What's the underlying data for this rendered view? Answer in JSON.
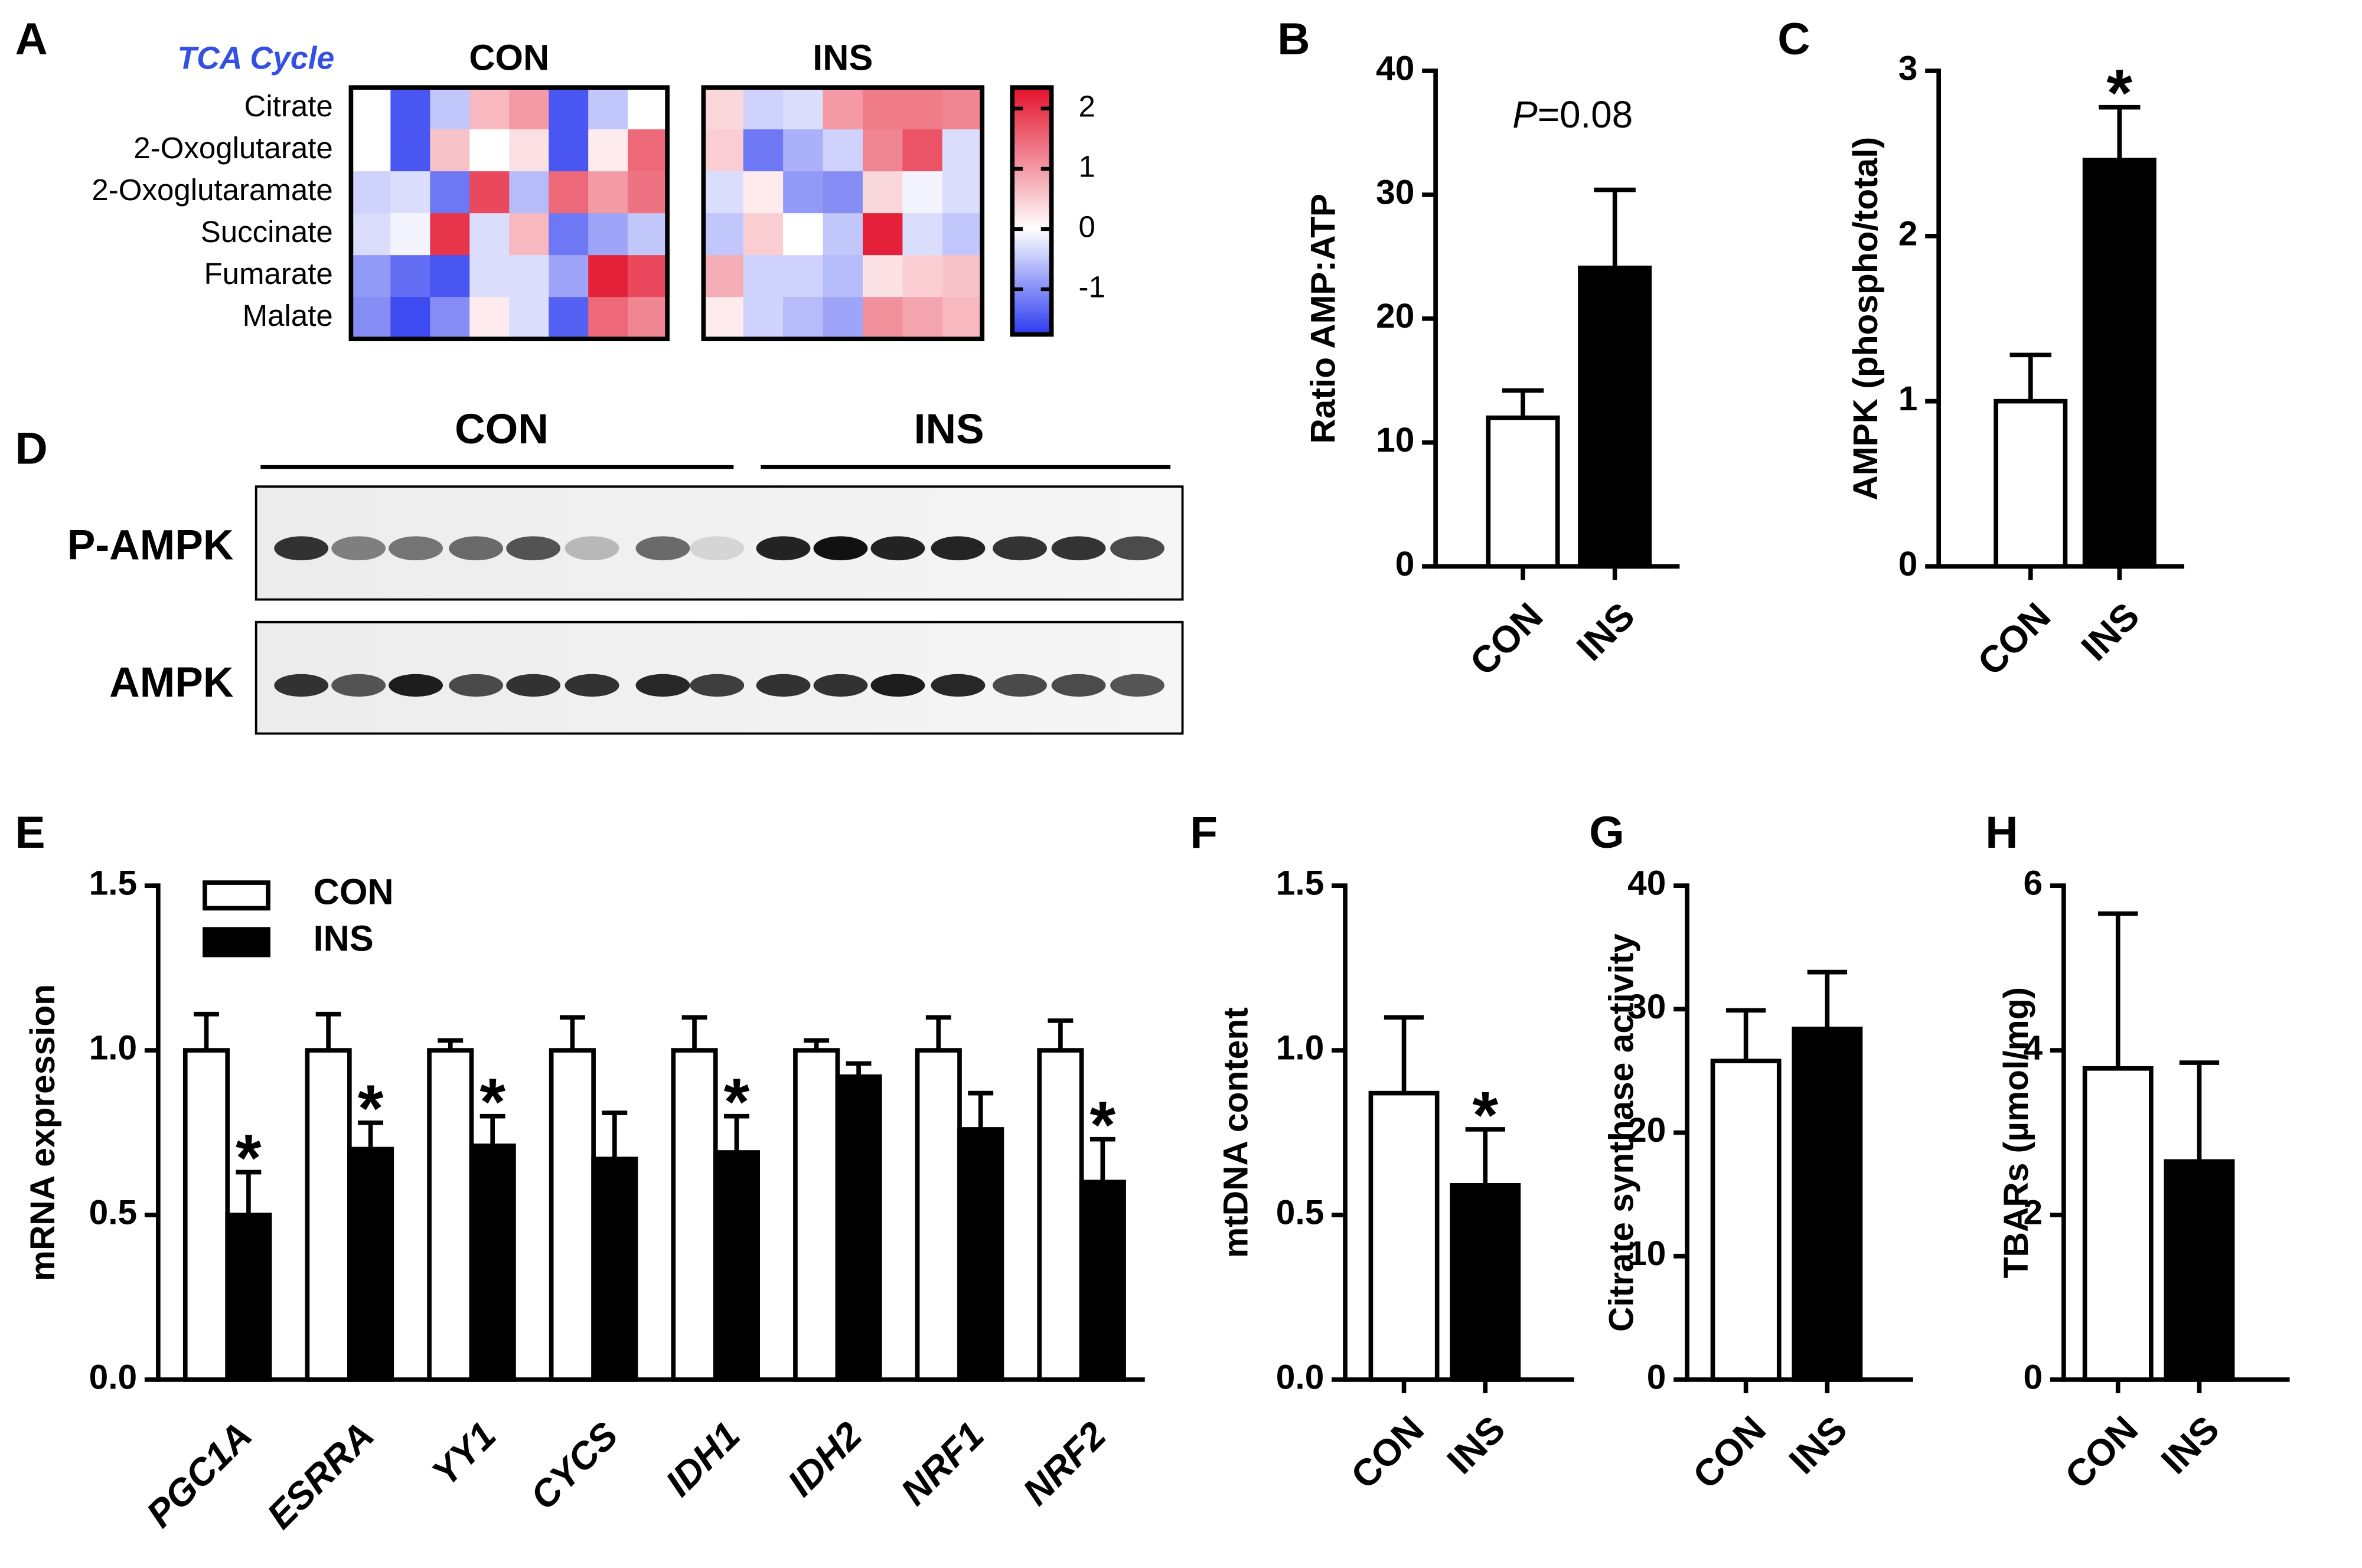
{
  "chart_data": [
    {
      "type": "heatmap",
      "panel": "A",
      "title": "TCA Cycle",
      "rows": [
        "Citrate",
        "2-Oxoglutarate",
        "2-Oxoglutaramate",
        "Succinate",
        "Fumarate",
        "Malate"
      ],
      "groups": [
        {
          "name": "CON",
          "values": [
            [
              0,
              -1.5,
              -0.5,
              0.7,
              1.0,
              -1.5,
              -0.5,
              0
            ],
            [
              0,
              -1.5,
              0.6,
              0,
              0.3,
              -1.5,
              0.2,
              1.5
            ],
            [
              -0.4,
              -0.3,
              -1.2,
              1.8,
              -0.6,
              1.5,
              1.0,
              1.4
            ],
            [
              -0.3,
              -0.1,
              2.0,
              -0.3,
              0.7,
              -1.2,
              -0.8,
              -0.5
            ],
            [
              -0.9,
              -1.3,
              -1.5,
              -0.3,
              -0.3,
              -0.8,
              2.2,
              1.8
            ],
            [
              -1.0,
              -1.6,
              -1.0,
              0.2,
              -0.3,
              -1.4,
              1.5,
              1.2
            ]
          ]
        },
        {
          "name": "INS",
          "values": [
            [
              0.4,
              -0.4,
              -0.3,
              1.0,
              1.3,
              1.3,
              1.2
            ],
            [
              0.5,
              -1.2,
              -0.7,
              -0.4,
              1.2,
              1.7,
              -0.3
            ],
            [
              -0.3,
              0.2,
              -0.9,
              -1.0,
              0.4,
              -0.1,
              -0.3
            ],
            [
              -0.5,
              0.5,
              0,
              -0.5,
              2.2,
              -0.3,
              -0.5
            ],
            [
              0.8,
              -0.4,
              -0.4,
              -0.6,
              0.3,
              0.5,
              0.6
            ],
            [
              0.2,
              -0.4,
              -0.6,
              -0.8,
              1.1,
              0.9,
              0.7
            ]
          ]
        }
      ],
      "clim": [
        -1.75,
        2.35
      ],
      "cticks": [
        -1,
        0,
        1,
        2
      ],
      "colors": [
        "#2b3af0",
        "#ffffff",
        "#e3122b"
      ]
    },
    {
      "type": "bar",
      "panel": "B",
      "categories": [
        "CON",
        "INS"
      ],
      "values": [
        12,
        24.1
      ],
      "errors": [
        2.2,
        6.3
      ],
      "colors": [
        "#ffffff",
        "#000000"
      ],
      "ylabel": "Ratio AMP:ATP",
      "ylim": [
        0,
        40
      ],
      "yticks": [
        0,
        10,
        20,
        30,
        40
      ],
      "annotation": {
        "italic": "P",
        "text": "=0.08"
      }
    },
    {
      "type": "bar",
      "panel": "C",
      "categories": [
        "CON",
        "INS"
      ],
      "values": [
        1.0,
        2.46
      ],
      "errors": [
        0.28,
        0.32
      ],
      "colors": [
        "#ffffff",
        "#000000"
      ],
      "ylabel": "AMPK (phospho/total)",
      "ylim": [
        0,
        3
      ],
      "yticks": [
        0,
        1,
        2,
        3
      ],
      "marks": [
        null,
        "*"
      ]
    },
    {
      "type": "grouped_bar",
      "panel": "E",
      "categories": [
        "PGC1A",
        "ESRRA",
        "YY1",
        "CYCS",
        "IDH1",
        "IDH2",
        "NRF1",
        "NRF2"
      ],
      "series": [
        {
          "name": "CON",
          "color": "#ffffff",
          "values": [
            1,
            1,
            1,
            1,
            1,
            1,
            1,
            1
          ],
          "errors": [
            0.11,
            0.11,
            0.03,
            0.1,
            0.1,
            0.03,
            0.1,
            0.09
          ]
        },
        {
          "name": "INS",
          "color": "#000000",
          "values": [
            0.5,
            0.7,
            0.71,
            0.67,
            0.69,
            0.92,
            0.76,
            0.6
          ],
          "errors": [
            0.13,
            0.08,
            0.09,
            0.14,
            0.11,
            0.04,
            0.11,
            0.13
          ]
        }
      ],
      "marks": [
        "*",
        "*",
        "*",
        null,
        "*",
        null,
        null,
        "*"
      ],
      "ylabel": "mRNA expression",
      "ylim": [
        0,
        1.5
      ],
      "yticks": [
        {
          "value": 0,
          "label": "0.0"
        },
        0.5,
        {
          "value": 1,
          "label": "1.0"
        },
        1.5
      ]
    },
    {
      "type": "bar",
      "panel": "F",
      "categories": [
        "CON",
        "INS"
      ],
      "values": [
        0.87,
        0.59
      ],
      "errors": [
        0.23,
        0.17
      ],
      "colors": [
        "#ffffff",
        "#000000"
      ],
      "ylabel": "mtDNA content",
      "ylim": [
        0,
        1.5
      ],
      "yticks": [
        {
          "value": 0,
          "label": "0.0"
        },
        0.5,
        {
          "value": 1,
          "label": "1.0"
        },
        1.5
      ],
      "marks": [
        null,
        "*"
      ]
    },
    {
      "type": "bar",
      "panel": "G",
      "categories": [
        "CON",
        "INS"
      ],
      "values": [
        25.8,
        28.4
      ],
      "errors": [
        4.1,
        4.6
      ],
      "colors": [
        "#ffffff",
        "#000000"
      ],
      "ylabel": "Citrate synthase activity",
      "ylim": [
        0,
        40
      ],
      "yticks": [
        0,
        10,
        20,
        30,
        40
      ]
    },
    {
      "type": "bar",
      "panel": "H",
      "categories": [
        "CON",
        "INS"
      ],
      "values": [
        3.78,
        2.65
      ],
      "errors": [
        1.88,
        1.2
      ],
      "colors": [
        "#ffffff",
        "#000000"
      ],
      "ylabel": "TBARs (µmol/mg)",
      "ylim": [
        0,
        6
      ],
      "yticks": [
        0,
        2,
        4,
        6
      ]
    }
  ],
  "blot": {
    "panel": "D",
    "groups": [
      "CON",
      "INS"
    ],
    "rows": [
      "P-AMPK",
      "AMPK"
    ]
  }
}
